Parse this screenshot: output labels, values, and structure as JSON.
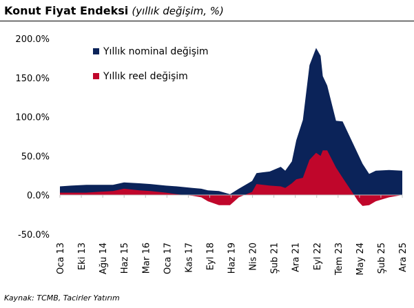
{
  "title": {
    "bold": "Konut Fiyat Endeksi",
    "italic": "(yıllık değişim, %)"
  },
  "source": "Kaynak: TCMB, Tacirler Yatırım",
  "colors": {
    "nominal": "#0b2359",
    "real": "#c0062b"
  },
  "chart_data": {
    "type": "area",
    "title": "Konut Fiyat Endeksi (yıllık değişim, %)",
    "ylim": [
      -50,
      200
    ],
    "yticks": [
      "-50.0%",
      "0.0%",
      "50.0%",
      "100.0%",
      "150.0%",
      "200.0%"
    ],
    "ytick_values": [
      -50,
      0,
      50,
      100,
      150,
      200
    ],
    "xticks": [
      "Oca 13",
      "Eki 13",
      "Ağu 14",
      "Haz 15",
      "Mar 16",
      "Oca 17",
      "Kas 17",
      "Eyl 18",
      "Haz 19",
      "Nis 20",
      "Şub 21",
      "Ara 21",
      "Eyl 22",
      "Tem 23",
      "May 24",
      "Şub 25",
      "Ara 25"
    ],
    "grid": false,
    "legend_position": "top-left",
    "x": [
      "2013-01",
      "2013-06",
      "2014-01",
      "2014-06",
      "2015-01",
      "2015-06",
      "2016-01",
      "2016-06",
      "2017-01",
      "2017-06",
      "2018-01",
      "2018-05",
      "2018-08",
      "2019-01",
      "2019-06",
      "2019-10",
      "2020-04",
      "2020-06",
      "2020-12",
      "2021-05",
      "2021-07",
      "2021-10",
      "2021-12",
      "2022-03",
      "2022-06",
      "2022-09",
      "2022-11",
      "2022-12",
      "2023-02",
      "2023-06",
      "2023-09",
      "2024-01",
      "2024-04",
      "2024-06",
      "2024-09",
      "2024-12",
      "2025-06",
      "2025-12"
    ],
    "series": [
      {
        "name": "Yıllık nominal değişim",
        "values": [
          11,
          12,
          13,
          13,
          13,
          16,
          15,
          14,
          12,
          11,
          9,
          8,
          6,
          5,
          1,
          8,
          18,
          28,
          30,
          36,
          31,
          43,
          70,
          96,
          166,
          188,
          178,
          152,
          140,
          95,
          94,
          70,
          52,
          40,
          27,
          31,
          32,
          31
        ]
      },
      {
        "name": "Yıllık reel değişim",
        "values": [
          3,
          3,
          3,
          4,
          5,
          8,
          6,
          5,
          3,
          1,
          -1,
          -3,
          -8,
          -13,
          -13,
          -3,
          4,
          14,
          12,
          11,
          9,
          15,
          20,
          22,
          45,
          54,
          50,
          57,
          57,
          35,
          22,
          5,
          -8,
          -14,
          -13,
          -8,
          -3,
          0
        ]
      }
    ]
  }
}
